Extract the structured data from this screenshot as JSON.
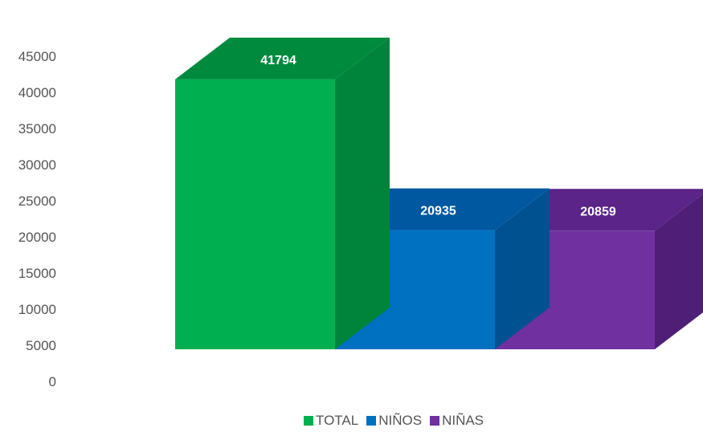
{
  "chart_data": {
    "type": "bar",
    "categories": [
      "TOTAL",
      "NIÑOS",
      "NIÑAS"
    ],
    "values": [
      41794,
      20935,
      20859
    ],
    "data_labels": [
      "41794",
      "20935",
      "20859"
    ],
    "ylim": [
      0,
      45000
    ],
    "yticks": [
      0,
      5000,
      10000,
      15000,
      20000,
      25000,
      30000,
      35000,
      40000,
      45000
    ],
    "ytick_labels": [
      "0",
      "5000",
      "10000",
      "15000",
      "20000",
      "25000",
      "30000",
      "35000",
      "40000",
      "45000"
    ],
    "title": "",
    "xlabel": "",
    "ylabel": "",
    "grid": false,
    "style": "3d-column",
    "legend_position": "bottom",
    "colors": {
      "TOTAL": {
        "front": "#00b050",
        "side": "#00843c",
        "top": "#008a3e"
      },
      "NIÑOS": {
        "front": "#0070c0",
        "side": "#005190",
        "top": "#0058a0"
      },
      "NIÑAS": {
        "front": "#7030a0",
        "side": "#4f1f78",
        "top": "#5a2488"
      }
    }
  },
  "legend": {
    "items": [
      {
        "label": "TOTAL",
        "color": "#00b050"
      },
      {
        "label": "NIÑOS",
        "color": "#0070c0"
      },
      {
        "label": "NIÑAS",
        "color": "#7030a0"
      }
    ]
  }
}
